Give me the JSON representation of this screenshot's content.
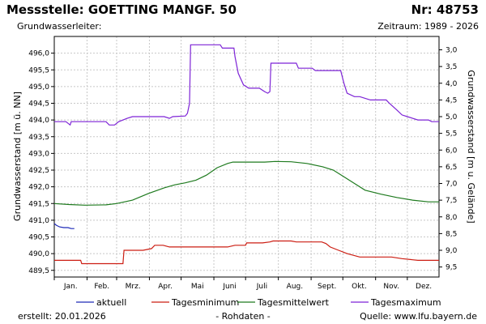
{
  "header": {
    "title": "Messstelle: GOETTING MANGF. 50",
    "station_number": "Nr: 48753",
    "aquifer_label": "Grundwasserleiter:",
    "period": "Zeitraum: 1989 - 2026"
  },
  "footer": {
    "created": "erstellt:  20.01.2026",
    "status": "- Rohdaten -",
    "source": "Quelle: www.lfu.bayern.de"
  },
  "colors": {
    "aktuell": "#1f2bb8",
    "min": "#cc1d12",
    "mean": "#1e7a1e",
    "max": "#7d23d6",
    "grid": "#c8c8c8"
  },
  "chart_data": {
    "type": "line",
    "xlabel": "",
    "ylabel": "Grundwasserstand [m ü. NN]",
    "ylabel_right": "Grundwasserstand [m u. Gelände]",
    "months": [
      "Jan.",
      "Feb.",
      "Mrz.",
      "Apr.",
      "Mai",
      "Juni",
      "Juli",
      "Aug.",
      "Sept.",
      "Okt.",
      "Nov.",
      "Dez."
    ],
    "month_days": [
      31,
      28,
      31,
      30,
      31,
      30,
      31,
      31,
      30,
      31,
      30,
      31
    ],
    "x_unit": "day of year",
    "xlim": [
      1,
      365
    ],
    "ylim": [
      489.3,
      496.5
    ],
    "yticks": [
      "489,5",
      "490,0",
      "490,5",
      "491,0",
      "491,5",
      "492,0",
      "492,5",
      "493,0",
      "493,5",
      "494,0",
      "494,5",
      "495,0",
      "495,5",
      "496,0"
    ],
    "yticks_right": [
      "3,0",
      "3,5",
      "4,0",
      "4,5",
      "5,0",
      "5,5",
      "6,0",
      "6,5",
      "7,0",
      "7,5",
      "8,0",
      "8,5",
      "9,0",
      "9,5"
    ],
    "reference_level": 499.1,
    "grid": true,
    "legend_position": "bottom",
    "series": [
      {
        "name": "aktuell",
        "color_key": "aktuell",
        "points": [
          [
            1,
            490.9
          ],
          [
            3,
            490.85
          ],
          [
            6,
            490.8
          ],
          [
            10,
            490.78
          ],
          [
            14,
            490.78
          ],
          [
            17,
            490.75
          ],
          [
            20,
            490.75
          ]
        ]
      },
      {
        "name": "Tagesminimum",
        "color_key": "min",
        "points": [
          [
            1,
            489.8
          ],
          [
            26,
            489.8
          ],
          [
            27,
            489.7
          ],
          [
            60,
            489.7
          ],
          [
            66,
            489.7
          ],
          [
            67,
            490.1
          ],
          [
            75,
            490.1
          ],
          [
            85,
            490.1
          ],
          [
            93,
            490.15
          ],
          [
            96,
            490.25
          ],
          [
            104,
            490.25
          ],
          [
            110,
            490.2
          ],
          [
            165,
            490.2
          ],
          [
            172,
            490.25
          ],
          [
            182,
            490.25
          ],
          [
            183,
            490.32
          ],
          [
            198,
            490.32
          ],
          [
            205,
            490.35
          ],
          [
            208,
            490.38
          ],
          [
            225,
            490.38
          ],
          [
            230,
            490.35
          ],
          [
            254,
            490.35
          ],
          [
            258,
            490.3
          ],
          [
            262,
            490.2
          ],
          [
            270,
            490.1
          ],
          [
            278,
            490.0
          ],
          [
            290,
            489.9
          ],
          [
            320,
            489.9
          ],
          [
            330,
            489.85
          ],
          [
            345,
            489.8
          ],
          [
            365,
            489.8
          ]
        ]
      },
      {
        "name": "Tagesmittelwert",
        "color_key": "mean",
        "points": [
          [
            1,
            491.5
          ],
          [
            15,
            491.47
          ],
          [
            30,
            491.45
          ],
          [
            50,
            491.46
          ],
          [
            60,
            491.5
          ],
          [
            75,
            491.6
          ],
          [
            90,
            491.8
          ],
          [
            105,
            491.97
          ],
          [
            115,
            492.06
          ],
          [
            125,
            492.12
          ],
          [
            135,
            492.2
          ],
          [
            145,
            492.35
          ],
          [
            155,
            492.57
          ],
          [
            165,
            492.7
          ],
          [
            170,
            492.74
          ],
          [
            185,
            492.74
          ],
          [
            200,
            492.74
          ],
          [
            210,
            492.76
          ],
          [
            225,
            492.75
          ],
          [
            240,
            492.7
          ],
          [
            255,
            492.6
          ],
          [
            265,
            492.5
          ],
          [
            275,
            492.3
          ],
          [
            285,
            492.1
          ],
          [
            295,
            491.9
          ],
          [
            310,
            491.78
          ],
          [
            325,
            491.68
          ],
          [
            340,
            491.6
          ],
          [
            355,
            491.55
          ],
          [
            365,
            491.55
          ]
        ]
      },
      {
        "name": "Tagesmaximum",
        "color_key": "max",
        "points": [
          [
            1,
            493.95
          ],
          [
            12,
            493.95
          ],
          [
            16,
            493.85
          ],
          [
            17,
            493.95
          ],
          [
            45,
            493.95
          ],
          [
            50,
            493.95
          ],
          [
            53,
            493.85
          ],
          [
            58,
            493.85
          ],
          [
            62,
            493.95
          ],
          [
            70,
            494.05
          ],
          [
            75,
            494.1
          ],
          [
            105,
            494.1
          ],
          [
            110,
            494.05
          ],
          [
            113,
            494.1
          ],
          [
            125,
            494.12
          ],
          [
            127,
            494.2
          ],
          [
            129,
            494.5
          ],
          [
            130,
            496.25
          ],
          [
            145,
            496.25
          ],
          [
            158,
            496.25
          ],
          [
            160,
            496.15
          ],
          [
            171,
            496.15
          ],
          [
            172,
            495.9
          ],
          [
            175,
            495.4
          ],
          [
            180,
            495.05
          ],
          [
            185,
            494.95
          ],
          [
            195,
            494.95
          ],
          [
            200,
            494.85
          ],
          [
            203,
            494.8
          ],
          [
            205,
            494.85
          ],
          [
            206,
            495.7
          ],
          [
            220,
            495.7
          ],
          [
            230,
            495.7
          ],
          [
            232,
            495.55
          ],
          [
            240,
            495.55
          ],
          [
            245,
            495.55
          ],
          [
            248,
            495.48
          ],
          [
            260,
            495.48
          ],
          [
            272,
            495.48
          ],
          [
            275,
            495.1
          ],
          [
            278,
            494.8
          ],
          [
            285,
            494.7
          ],
          [
            290,
            494.7
          ],
          [
            300,
            494.6
          ],
          [
            315,
            494.6
          ],
          [
            318,
            494.5
          ],
          [
            325,
            494.3
          ],
          [
            330,
            494.15
          ],
          [
            335,
            494.1
          ],
          [
            345,
            494.0
          ],
          [
            355,
            494.0
          ],
          [
            358,
            493.95
          ],
          [
            365,
            493.95
          ]
        ]
      }
    ]
  }
}
